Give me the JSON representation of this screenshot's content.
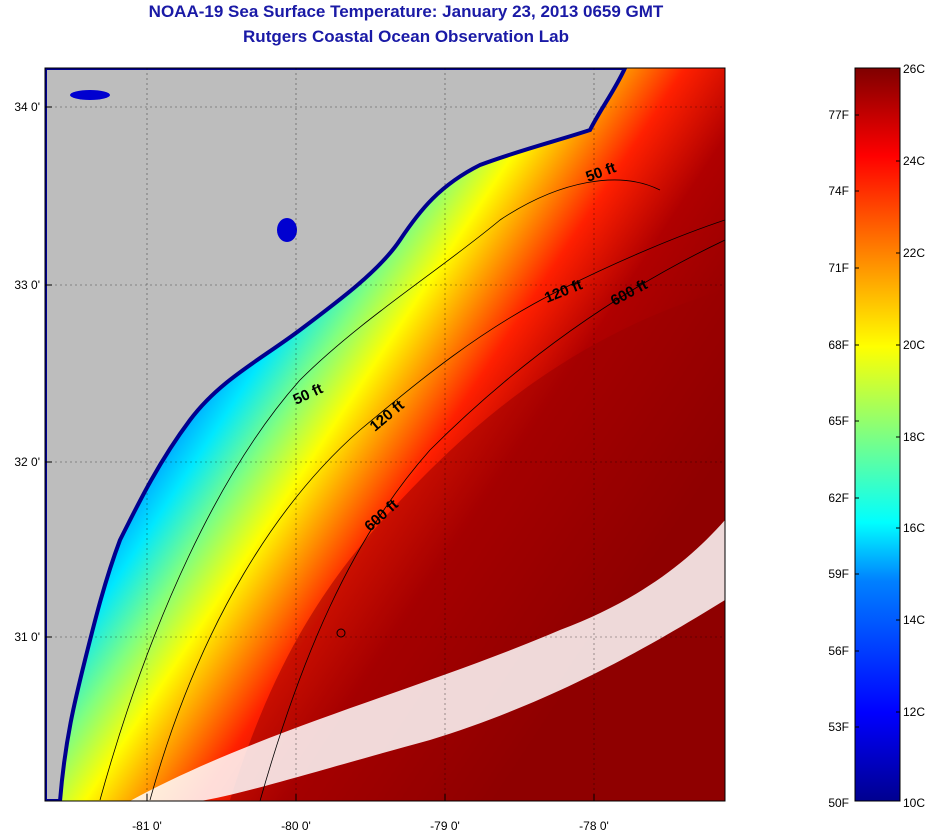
{
  "title": "NOAA-19 Sea Surface Temperature:  January 23, 2013 0659 GMT",
  "subtitle": "Rutgers Coastal Ocean Observation Lab",
  "map": {
    "lon_ticks": [
      "-81 0'",
      "-80 0'",
      "-79 0'",
      "-78 0'"
    ],
    "lat_ticks": [
      "34 0'",
      "33 0'",
      "32 0'",
      "31 0'"
    ],
    "isobath_labels": [
      "50 ft",
      "120 ft",
      "600 ft",
      "50 ft",
      "120 ft",
      "600 ft"
    ],
    "colors": {
      "land": "#bdbdbd",
      "cloud": "#ffffff",
      "cold": "#00009f",
      "warm": "#7f0000"
    }
  },
  "colorbar": {
    "fahrenheit_labels": [
      "77F",
      "74F",
      "71F",
      "68F",
      "65F",
      "62F",
      "59F",
      "56F",
      "53F",
      "50F"
    ],
    "celsius_labels": [
      "26C",
      "24C",
      "22C",
      "20C",
      "18C",
      "16C",
      "14C",
      "12C",
      "10C"
    ]
  }
}
